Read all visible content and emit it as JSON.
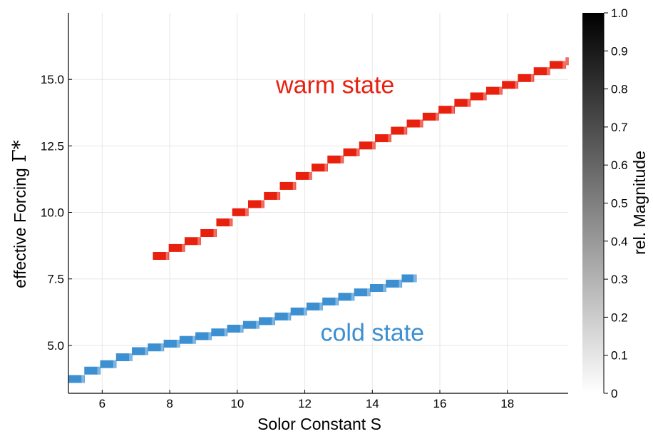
{
  "chart_data": {
    "type": "heatmap",
    "xlabel": "Solor Constant S",
    "ylabel_text": "effective Forcing",
    "ylabel_symbol": "Γ*",
    "xlim": [
      5,
      19.8
    ],
    "ylim": [
      3.2,
      17.5
    ],
    "x_ticks": [
      6,
      8,
      10,
      12,
      14,
      16,
      18
    ],
    "x_tick_labels": [
      "6",
      "8",
      "10",
      "12",
      "14",
      "16",
      "18"
    ],
    "y_ticks": [
      5.0,
      7.5,
      10.0,
      12.5,
      15.0
    ],
    "y_tick_labels": [
      "5.0",
      "7.5",
      "10.0",
      "12.5",
      "15.0"
    ],
    "grid": true,
    "colorbar": {
      "label": "rel. Magnitude",
      "range": [
        0,
        1
      ],
      "ticks": [
        0,
        0.1,
        0.2,
        0.3,
        0.4,
        0.5,
        0.6,
        0.7,
        0.8,
        0.9,
        1.0
      ],
      "tick_labels": [
        "0",
        "0.1",
        "0.2",
        "0.3",
        "0.4",
        "0.5",
        "0.6",
        "0.7",
        "0.8",
        "0.9",
        "1.0"
      ]
    },
    "series": [
      {
        "name": "warm state",
        "color": "#e8200e",
        "x_range": [
          7.5,
          19.8
        ],
        "points": [
          [
            7.5,
            8.2
          ],
          [
            8.0,
            8.55
          ],
          [
            9.0,
            9.1
          ],
          [
            10.0,
            9.95
          ],
          [
            11.0,
            10.6
          ],
          [
            12.0,
            11.4
          ],
          [
            13.0,
            12.05
          ],
          [
            14.0,
            12.6
          ],
          [
            15.0,
            13.2
          ],
          [
            16.0,
            13.75
          ],
          [
            17.0,
            14.3
          ],
          [
            18.0,
            14.75
          ],
          [
            19.0,
            15.3
          ],
          [
            19.8,
            15.7
          ]
        ]
      },
      {
        "name": "cold state",
        "color": "#3c8fd0",
        "x_range": [
          5.0,
          15.3
        ],
        "points": [
          [
            5.0,
            3.55
          ],
          [
            5.5,
            3.95
          ],
          [
            6.0,
            4.2
          ],
          [
            7.0,
            4.75
          ],
          [
            8.0,
            5.05
          ],
          [
            9.0,
            5.35
          ],
          [
            10.0,
            5.65
          ],
          [
            11.0,
            5.95
          ],
          [
            12.0,
            6.35
          ],
          [
            13.0,
            6.75
          ],
          [
            14.0,
            7.1
          ],
          [
            15.0,
            7.45
          ],
          [
            15.3,
            7.7
          ]
        ]
      }
    ],
    "annotations": [
      {
        "text": "warm state",
        "x": 12.9,
        "y": 14.8,
        "color": "#e8200e"
      },
      {
        "text": "cold state",
        "x": 14.0,
        "y": 5.5,
        "color": "#3c8fd0"
      }
    ]
  }
}
